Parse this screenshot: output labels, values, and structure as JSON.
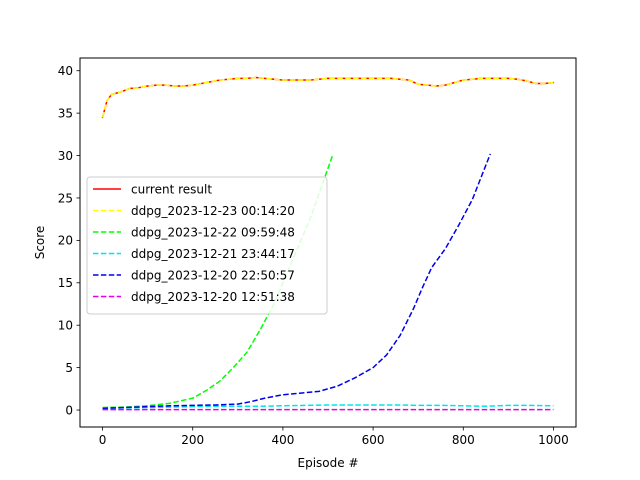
{
  "chart_data": {
    "type": "line",
    "title": "",
    "xlabel": "Episode #",
    "ylabel": "Score",
    "xlim": [
      -50,
      1050
    ],
    "ylim": [
      -2,
      41.5
    ],
    "xticks": [
      0,
      200,
      400,
      600,
      800,
      1000
    ],
    "xtick_labels": [
      "0",
      "200",
      "400",
      "600",
      "800",
      "1000"
    ],
    "yticks": [
      0,
      5,
      10,
      15,
      20,
      25,
      30,
      35,
      40
    ],
    "ytick_labels": [
      "0",
      "5",
      "10",
      "15",
      "20",
      "25",
      "30",
      "35",
      "40"
    ],
    "grid": false,
    "legend_position": "center-left",
    "series": [
      {
        "name": "current result",
        "color": "#ff0000",
        "dash": "solid",
        "x": [
          0,
          10,
          20,
          40,
          60,
          80,
          100,
          120,
          140,
          160,
          180,
          200,
          220,
          240,
          260,
          280,
          300,
          320,
          340,
          360,
          380,
          400,
          420,
          440,
          460,
          480,
          500,
          520,
          540,
          560,
          580,
          600,
          620,
          640,
          660,
          680,
          700,
          720,
          740,
          760,
          780,
          800,
          820,
          840,
          860,
          880,
          900,
          920,
          940,
          960,
          980,
          1000
        ],
        "y": [
          34.5,
          36.5,
          37.2,
          37.5,
          37.9,
          38.0,
          38.2,
          38.3,
          38.3,
          38.2,
          38.2,
          38.3,
          38.5,
          38.7,
          38.9,
          39.0,
          39.1,
          39.1,
          39.2,
          39.1,
          39.0,
          38.9,
          38.9,
          38.9,
          38.9,
          39.0,
          39.1,
          39.1,
          39.1,
          39.1,
          39.1,
          39.1,
          39.1,
          39.1,
          39.0,
          38.9,
          38.4,
          38.3,
          38.2,
          38.3,
          38.6,
          38.9,
          39.0,
          39.1,
          39.1,
          39.1,
          39.1,
          39.0,
          38.8,
          38.5,
          38.5,
          38.6
        ]
      },
      {
        "name": "ddpg_2023-12-23 00:14:20",
        "color": "#ffff00",
        "dash": "dashed",
        "x": [
          0,
          10,
          20,
          40,
          60,
          80,
          100,
          120,
          140,
          160,
          180,
          200,
          220,
          240,
          260,
          280,
          300,
          320,
          340,
          360,
          380,
          400,
          420,
          440,
          460,
          480,
          500,
          520,
          540,
          560,
          580,
          600,
          620,
          640,
          660,
          680,
          700,
          720,
          740,
          760,
          780,
          800,
          820,
          840,
          860,
          880,
          900,
          920,
          940,
          960,
          980,
          1000
        ],
        "y": [
          34.5,
          36.5,
          37.2,
          37.5,
          37.9,
          38.0,
          38.2,
          38.3,
          38.3,
          38.2,
          38.2,
          38.3,
          38.5,
          38.7,
          38.9,
          39.0,
          39.1,
          39.1,
          39.2,
          39.1,
          39.0,
          38.9,
          38.9,
          38.9,
          38.9,
          39.0,
          39.1,
          39.1,
          39.1,
          39.1,
          39.1,
          39.1,
          39.1,
          39.1,
          39.0,
          38.9,
          38.4,
          38.3,
          38.2,
          38.3,
          38.6,
          38.9,
          39.0,
          39.1,
          39.1,
          39.1,
          39.1,
          39.0,
          38.8,
          38.5,
          38.5,
          38.6
        ]
      },
      {
        "name": "ddpg_2023-12-22 09:59:48",
        "color": "#00ff00",
        "dash": "dashed",
        "x": [
          0,
          50,
          100,
          150,
          200,
          230,
          260,
          290,
          320,
          350,
          380,
          400,
          420,
          440,
          460,
          480,
          500,
          510
        ],
        "y": [
          0.3,
          0.35,
          0.5,
          0.8,
          1.4,
          2.3,
          3.4,
          5.0,
          6.8,
          9.5,
          12.5,
          15.0,
          17.5,
          20.0,
          22.5,
          25.5,
          28.5,
          30.0
        ]
      },
      {
        "name": "ddpg_2023-12-21 23:44:17",
        "color": "#00e5e5",
        "dash": "dashed",
        "x": [
          0,
          50,
          100,
          150,
          200,
          250,
          300,
          350,
          400,
          450,
          500,
          550,
          600,
          650,
          700,
          750,
          800,
          850,
          900,
          950,
          1000
        ],
        "y": [
          0.2,
          0.25,
          0.3,
          0.35,
          0.4,
          0.45,
          0.45,
          0.45,
          0.5,
          0.55,
          0.6,
          0.6,
          0.6,
          0.6,
          0.55,
          0.55,
          0.5,
          0.45,
          0.55,
          0.55,
          0.5
        ]
      },
      {
        "name": "ddpg_2023-12-20 22:50:57",
        "color": "#0000ee",
        "dash": "dashed",
        "x": [
          0,
          50,
          100,
          150,
          200,
          250,
          300,
          330,
          360,
          400,
          440,
          480,
          520,
          560,
          600,
          630,
          660,
          690,
          710,
          730,
          760,
          790,
          820,
          840,
          860
        ],
        "y": [
          0.2,
          0.3,
          0.4,
          0.5,
          0.55,
          0.6,
          0.7,
          1.0,
          1.4,
          1.8,
          2.0,
          2.2,
          2.8,
          3.8,
          5.0,
          6.5,
          8.8,
          12.0,
          14.5,
          16.8,
          19.0,
          21.8,
          24.8,
          27.5,
          30.2
        ]
      },
      {
        "name": "ddpg_2023-12-20 12:51:38",
        "color": "#e600e6",
        "dash": "dashed",
        "x": [
          0,
          100,
          200,
          300,
          400,
          500,
          600,
          700,
          800,
          900,
          1000
        ],
        "y": [
          0.05,
          0.05,
          0.05,
          0.05,
          0.05,
          0.05,
          0.05,
          0.05,
          0.05,
          0.05,
          0.05
        ]
      }
    ]
  }
}
